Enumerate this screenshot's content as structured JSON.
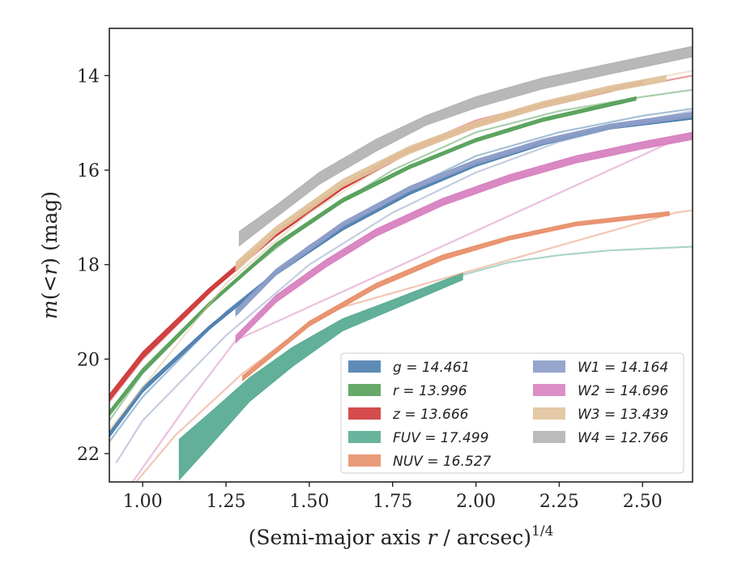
{
  "chart_data": {
    "type": "line",
    "xlabel": "(Semi-major axis r / arcsec)",
    "xlabel_parts": {
      "prefix": "(Semi-major axis ",
      "var": "r",
      "suffix": " / arcsec)",
      "exponent": "1/4"
    },
    "ylabel": "m(<r) (mag)",
    "ylabel_parts": {
      "var": "m",
      "middle": "(<",
      "var2": "r",
      "suffix": ") (mag)"
    },
    "xlim": [
      0.9,
      2.65
    ],
    "ylim": [
      22.6,
      13.0
    ],
    "y_inverted": true,
    "x_ticks": [
      1.0,
      1.25,
      1.5,
      1.75,
      2.0,
      2.25,
      2.5
    ],
    "x_tick_labels": [
      "1.00",
      "1.25",
      "1.50",
      "1.75",
      "2.00",
      "2.25",
      "2.50"
    ],
    "y_ticks": [
      14,
      16,
      18,
      20,
      22
    ],
    "y_tick_labels": [
      "14",
      "16",
      "18",
      "20",
      "22"
    ],
    "grid": false,
    "legend_position": "lower-right",
    "legend_columns": 2,
    "series": [
      {
        "name": "g",
        "total": "14.461",
        "label": "g = 14.461",
        "color": "#4c7fae",
        "faint": [
          [
            0.9,
            21.75
          ],
          [
            1.0,
            20.8
          ],
          [
            1.25,
            19.0
          ],
          [
            1.5,
            17.6
          ],
          [
            1.75,
            16.55
          ],
          [
            2.0,
            15.7
          ],
          [
            2.25,
            15.2
          ],
          [
            2.5,
            14.85
          ],
          [
            2.65,
            14.7
          ]
        ],
        "band": {
          "upper": [
            [
              0.9,
              21.55
            ],
            [
              1.0,
              20.6
            ],
            [
              1.2,
              19.3
            ],
            [
              1.4,
              18.15
            ],
            [
              1.6,
              17.2
            ],
            [
              1.8,
              16.45
            ],
            [
              2.0,
              15.85
            ],
            [
              2.2,
              15.4
            ],
            [
              2.4,
              15.07
            ],
            [
              2.65,
              14.85
            ]
          ],
          "lower": [
            [
              0.9,
              21.65
            ],
            [
              1.0,
              20.7
            ],
            [
              1.2,
              19.37
            ],
            [
              1.4,
              18.22
            ],
            [
              1.6,
              17.27
            ],
            [
              1.8,
              16.52
            ],
            [
              2.0,
              15.92
            ],
            [
              2.2,
              15.47
            ],
            [
              2.4,
              15.13
            ],
            [
              2.65,
              14.92
            ]
          ]
        }
      },
      {
        "name": "r",
        "total": "13.996",
        "label": "r = 13.996",
        "color": "#55a05a",
        "faint": [
          [
            0.9,
            21.3
          ],
          [
            1.0,
            20.3
          ],
          [
            1.25,
            18.5
          ],
          [
            1.5,
            17.1
          ],
          [
            1.75,
            16.0
          ],
          [
            2.0,
            15.2
          ],
          [
            2.25,
            14.75
          ],
          [
            2.5,
            14.45
          ],
          [
            2.65,
            14.3
          ]
        ],
        "band": {
          "upper": [
            [
              0.9,
              21.1
            ],
            [
              1.0,
              20.2
            ],
            [
              1.2,
              18.8
            ],
            [
              1.4,
              17.55
            ],
            [
              1.6,
              16.6
            ],
            [
              1.8,
              15.9
            ],
            [
              2.0,
              15.33
            ],
            [
              2.2,
              14.9
            ],
            [
              2.48,
              14.45
            ]
          ],
          "lower": [
            [
              0.9,
              21.2
            ],
            [
              1.0,
              20.3
            ],
            [
              1.2,
              18.87
            ],
            [
              1.4,
              17.63
            ],
            [
              1.6,
              16.68
            ],
            [
              1.8,
              15.97
            ],
            [
              2.0,
              15.4
            ],
            [
              2.2,
              14.97
            ],
            [
              2.48,
              14.52
            ]
          ]
        }
      },
      {
        "name": "z",
        "total": "13.666",
        "label": "z = 13.666",
        "color": "#cf3838",
        "faint": [
          [
            0.9,
            20.9
          ],
          [
            1.0,
            20.0
          ],
          [
            1.25,
            18.25
          ],
          [
            1.5,
            16.8
          ],
          [
            1.75,
            15.7
          ],
          [
            2.0,
            14.95
          ],
          [
            2.25,
            14.5
          ],
          [
            2.5,
            14.2
          ],
          [
            2.65,
            14.0
          ]
        ],
        "band": {
          "upper": [
            [
              0.9,
              20.75
            ],
            [
              1.0,
              19.85
            ],
            [
              1.2,
              18.5
            ],
            [
              1.4,
              17.3
            ],
            [
              1.6,
              16.3
            ],
            [
              1.8,
              15.55
            ],
            [
              2.0,
              15.0
            ],
            [
              2.2,
              14.6
            ],
            [
              2.5,
              14.1
            ]
          ],
          "lower": [
            [
              0.9,
              20.88
            ],
            [
              1.0,
              19.98
            ],
            [
              1.2,
              18.6
            ],
            [
              1.4,
              17.4
            ],
            [
              1.6,
              16.4
            ],
            [
              1.8,
              15.64
            ],
            [
              2.0,
              15.08
            ],
            [
              2.2,
              14.68
            ],
            [
              2.5,
              14.18
            ]
          ]
        }
      },
      {
        "name": "FUV",
        "total": "17.499",
        "label": "FUV = 17.499",
        "color": "#5aac93",
        "faint": [
          [
            1.96,
            18.22
          ],
          [
            2.1,
            17.95
          ],
          [
            2.25,
            17.8
          ],
          [
            2.4,
            17.7
          ],
          [
            2.65,
            17.62
          ]
        ],
        "band": {
          "upper": [
            [
              1.11,
              21.7
            ],
            [
              1.2,
              21.15
            ],
            [
              1.32,
              20.4
            ],
            [
              1.45,
              19.75
            ],
            [
              1.6,
              19.15
            ],
            [
              1.75,
              18.75
            ],
            [
              1.96,
              18.18
            ]
          ],
          "lower": [
            [
              1.11,
              22.55
            ],
            [
              1.2,
              21.85
            ],
            [
              1.32,
              20.9
            ],
            [
              1.45,
              20.15
            ],
            [
              1.6,
              19.4
            ],
            [
              1.75,
              18.95
            ],
            [
              1.96,
              18.32
            ]
          ]
        }
      },
      {
        "name": "NUV",
        "total": "16.527",
        "label": "NUV = 16.527",
        "color": "#e8906b",
        "faint": [
          [
            0.98,
            22.6
          ],
          [
            1.1,
            21.6
          ],
          [
            1.3,
            20.3
          ],
          [
            1.5,
            19.25
          ],
          [
            1.6,
            18.9
          ],
          [
            2.6,
            16.9
          ],
          [
            2.65,
            16.85
          ]
        ],
        "band": {
          "upper": [
            [
              1.3,
              20.35
            ],
            [
              1.5,
              19.2
            ],
            [
              1.7,
              18.4
            ],
            [
              1.9,
              17.8
            ],
            [
              2.1,
              17.4
            ],
            [
              2.3,
              17.1
            ],
            [
              2.58,
              16.88
            ]
          ],
          "lower": [
            [
              1.3,
              20.45
            ],
            [
              1.5,
              19.3
            ],
            [
              1.7,
              18.5
            ],
            [
              1.9,
              17.9
            ],
            [
              2.1,
              17.48
            ],
            [
              2.3,
              17.18
            ],
            [
              2.58,
              16.96
            ]
          ]
        }
      },
      {
        "name": "W1",
        "total": "14.164",
        "label": "W1 = 14.164",
        "color": "#8b9cc7",
        "faint": [
          [
            0.92,
            22.2
          ],
          [
            1.0,
            21.3
          ],
          [
            1.25,
            19.5
          ],
          [
            1.5,
            18.0
          ],
          [
            1.75,
            16.9
          ],
          [
            2.0,
            16.05
          ],
          [
            2.25,
            15.4
          ],
          [
            2.5,
            14.95
          ],
          [
            2.65,
            14.75
          ]
        ],
        "band": {
          "upper": [
            [
              1.28,
              18.95
            ],
            [
              1.4,
              18.1
            ],
            [
              1.6,
              17.1
            ],
            [
              1.8,
              16.35
            ],
            [
              2.0,
              15.78
            ],
            [
              2.2,
              15.35
            ],
            [
              2.4,
              15.03
            ],
            [
              2.65,
              14.78
            ]
          ],
          "lower": [
            [
              1.28,
              19.08
            ],
            [
              1.4,
              18.22
            ],
            [
              1.6,
              17.2
            ],
            [
              1.8,
              16.45
            ],
            [
              2.0,
              15.88
            ],
            [
              2.2,
              15.45
            ],
            [
              2.4,
              15.12
            ],
            [
              2.65,
              14.88
            ]
          ]
        }
      },
      {
        "name": "W2",
        "total": "14.696",
        "label": "W2 = 14.696",
        "color": "#d882c0",
        "faint": [
          [
            0.97,
            22.6
          ],
          [
            1.05,
            21.8
          ],
          [
            1.15,
            20.8
          ],
          [
            1.28,
            19.6
          ],
          [
            2.65,
            15.2
          ]
        ],
        "band": {
          "upper": [
            [
              1.28,
              19.5
            ],
            [
              1.4,
              18.65
            ],
            [
              1.55,
              17.9
            ],
            [
              1.7,
              17.25
            ],
            [
              1.9,
              16.6
            ],
            [
              2.1,
              16.1
            ],
            [
              2.3,
              15.7
            ],
            [
              2.5,
              15.4
            ],
            [
              2.65,
              15.2
            ]
          ],
          "lower": [
            [
              1.28,
              19.65
            ],
            [
              1.4,
              18.8
            ],
            [
              1.55,
              18.05
            ],
            [
              1.7,
              17.4
            ],
            [
              1.9,
              16.75
            ],
            [
              2.1,
              16.25
            ],
            [
              2.3,
              15.85
            ],
            [
              2.5,
              15.55
            ],
            [
              2.65,
              15.35
            ]
          ]
        }
      },
      {
        "name": "W3",
        "total": "13.439",
        "label": "W3 = 13.439",
        "color": "#e0c39c",
        "faint": [
          [
            0.9,
            21.5
          ],
          [
            1.0,
            20.6
          ],
          [
            1.25,
            18.4
          ],
          [
            1.5,
            16.9
          ],
          [
            1.75,
            15.8
          ],
          [
            2.0,
            15.05
          ],
          [
            2.25,
            14.55
          ],
          [
            2.5,
            14.1
          ],
          [
            2.65,
            13.9
          ]
        ],
        "band": {
          "upper": [
            [
              1.28,
              17.95
            ],
            [
              1.4,
              17.2
            ],
            [
              1.6,
              16.2
            ],
            [
              1.8,
              15.5
            ],
            [
              2.0,
              14.97
            ],
            [
              2.2,
              14.55
            ],
            [
              2.4,
              14.22
            ],
            [
              2.57,
              14.0
            ]
          ],
          "lower": [
            [
              1.28,
              18.15
            ],
            [
              1.4,
              17.35
            ],
            [
              1.6,
              16.35
            ],
            [
              1.8,
              15.65
            ],
            [
              2.0,
              15.1
            ],
            [
              2.2,
              14.68
            ],
            [
              2.4,
              14.34
            ],
            [
              2.57,
              14.12
            ]
          ]
        }
      },
      {
        "name": "W4",
        "total": "12.766",
        "label": "W4 = 12.766",
        "color": "#b4b4b4",
        "faint": [],
        "band": {
          "upper": [
            [
              1.29,
              17.3
            ],
            [
              1.4,
              16.75
            ],
            [
              1.53,
              16.05
            ],
            [
              1.7,
              15.35
            ],
            [
              1.85,
              14.85
            ],
            [
              2.0,
              14.45
            ],
            [
              2.2,
              14.05
            ],
            [
              2.4,
              13.75
            ],
            [
              2.65,
              13.38
            ]
          ],
          "lower": [
            [
              1.29,
              17.6
            ],
            [
              1.4,
              17.0
            ],
            [
              1.53,
              16.3
            ],
            [
              1.7,
              15.6
            ],
            [
              1.85,
              15.05
            ],
            [
              2.0,
              14.68
            ],
            [
              2.2,
              14.28
            ],
            [
              2.4,
              13.97
            ],
            [
              2.65,
              13.6
            ]
          ]
        }
      }
    ]
  }
}
